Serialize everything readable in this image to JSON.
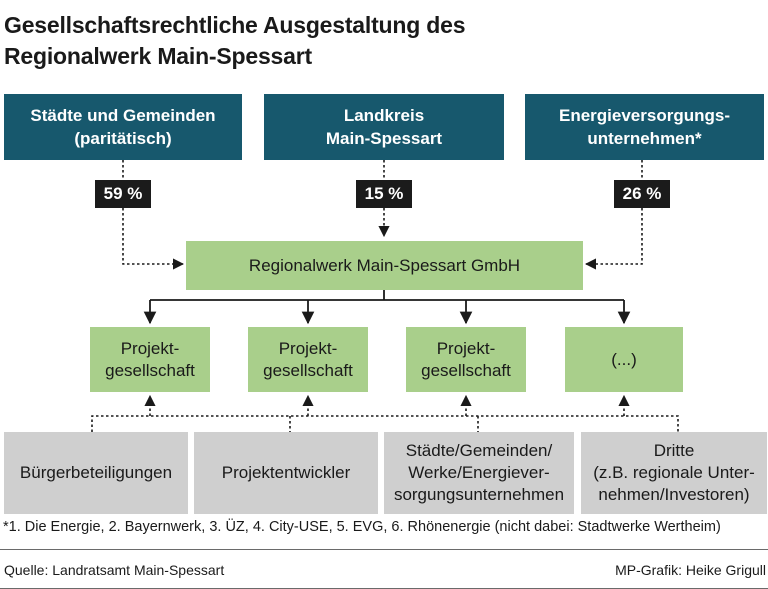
{
  "title": {
    "line1": "Gesellschaftsrechtliche Ausgestaltung des",
    "line2": "Regionalwerk Main-Spessart"
  },
  "owners": [
    {
      "line1": "Städte und Gemeinden",
      "line2": "(paritätisch)",
      "share": "59 %"
    },
    {
      "line1": "Landkreis",
      "line2": "Main-Spessart",
      "share": "15 %"
    },
    {
      "line1": "Energieversorgungs-",
      "line2": "unternehmen*",
      "share": "26 %"
    }
  ],
  "hub": "Regionalwerk Main-Spessart GmbH",
  "projects": [
    {
      "line1": "Projekt-",
      "line2": "gesellschaft"
    },
    {
      "line1": "Projekt-",
      "line2": "gesellschaft"
    },
    {
      "line1": "Projekt-",
      "line2": "gesellschaft"
    },
    {
      "line1": "(...)"
    }
  ],
  "participants": [
    {
      "line1": "Bürgerbeteiligungen"
    },
    {
      "line1": "Projektentwickler"
    },
    {
      "line1": "Städte/Gemeinden/",
      "line2": "Werke/Energiever-",
      "line3": "sorgungsunternehmen"
    },
    {
      "line1": "Dritte",
      "line2": "(z.B. regionale Unter-",
      "line3": "nehmen/Investoren)"
    }
  ],
  "footnote": "*1. Die Energie, 2. Bayernwerk, 3. ÜZ, 4. City-USE, 5. EVG, 6. Rhönenergie (nicht dabei: Stadtwerke Wertheim)",
  "source": "Quelle: Landratsamt Main-Spessart",
  "credit": "MP-Grafik: Heike Grigull",
  "colors": {
    "owner_box": "#17586d",
    "entity_box": "#a9cf8b",
    "participant_box": "#cfcfcf",
    "share_label": "#1b1b1b"
  }
}
